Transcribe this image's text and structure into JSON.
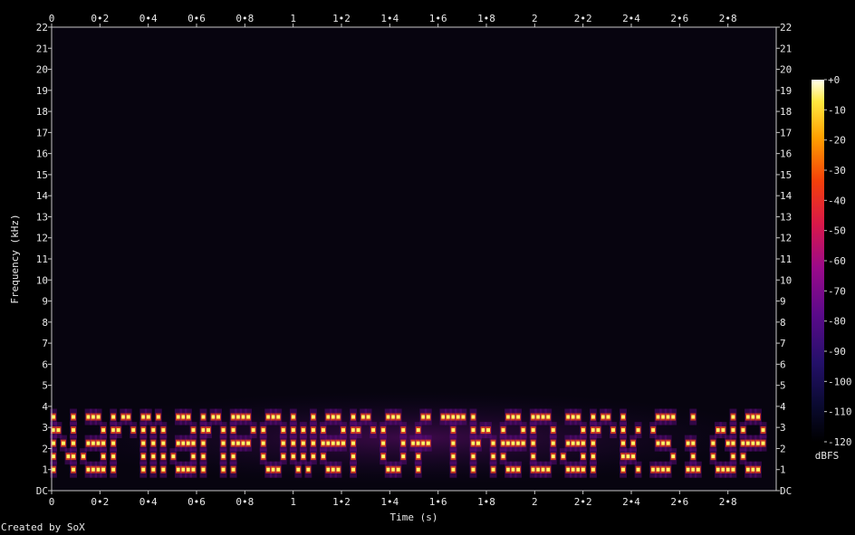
{
  "chart_data": {
    "type": "heatmap",
    "title": "",
    "xlabel": "Time (s)",
    "ylabel": "Frequency (kHz)",
    "xlim": [
      0,
      3.0
    ],
    "ylim": [
      0,
      22
    ],
    "x_ticks": [
      "0",
      "0•2",
      "0•4",
      "0•6",
      "0•8",
      "1",
      "1•2",
      "1•4",
      "1•6",
      "1•8",
      "2",
      "2•2",
      "2•4",
      "2•6",
      "2•8"
    ],
    "x_tick_values": [
      0,
      0.2,
      0.4,
      0.6,
      0.8,
      1.0,
      1.2,
      1.4,
      1.6,
      1.8,
      2.0,
      2.2,
      2.4,
      2.6,
      2.8
    ],
    "y_ticks": [
      "DC",
      "1",
      "2",
      "3",
      "4",
      "5",
      "6",
      "7",
      "8",
      "9",
      "10",
      "11",
      "12",
      "13",
      "14",
      "15",
      "16",
      "17",
      "18",
      "19",
      "20",
      "21",
      "22"
    ],
    "y_tick_values": [
      0,
      1,
      2,
      3,
      4,
      5,
      6,
      7,
      8,
      9,
      10,
      11,
      12,
      13,
      14,
      15,
      16,
      17,
      18,
      19,
      20,
      21,
      22
    ],
    "colorbar": {
      "label": "dBFS",
      "range": [
        -120,
        0
      ],
      "ticks": [
        "+0",
        "-10",
        "-20",
        "-30",
        "-40",
        "-50",
        "-60",
        "-70",
        "-80",
        "-90",
        "-100",
        "-110",
        "-120"
      ],
      "tick_values": [
        0,
        -10,
        -20,
        -30,
        -40,
        -50,
        -60,
        -70,
        -80,
        -90,
        -100,
        -110,
        -120
      ]
    },
    "hidden_text": "NarmanPowerOfTheDarkSide",
    "text_band_khz": [
      1,
      3.5
    ],
    "colors": {
      "background": "#000000",
      "plot_bg": "#07040f",
      "axis": "#c8c8c8",
      "peak": "#ffff66"
    }
  },
  "footer": {
    "credit": "Created by SoX"
  }
}
